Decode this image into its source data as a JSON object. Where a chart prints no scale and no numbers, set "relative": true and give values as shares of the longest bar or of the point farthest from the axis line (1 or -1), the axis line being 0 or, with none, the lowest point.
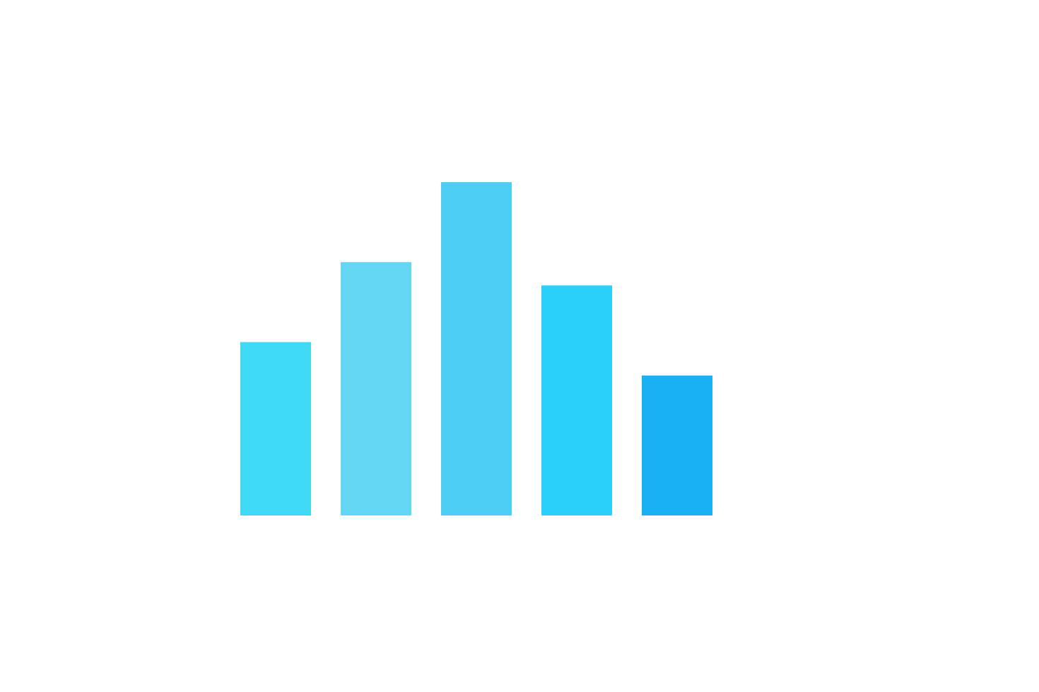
{
  "chart_data": {
    "type": "bar",
    "relative": true,
    "categories": [
      null,
      null,
      null,
      null,
      null
    ],
    "values": [
      0.52,
      0.76,
      1,
      0.69,
      0.42
    ],
    "colors": [
      "#3fd8f5",
      "#62d6f2",
      "#4ccdf3",
      "#2ad0f7",
      "#18b2f2"
    ]
  }
}
